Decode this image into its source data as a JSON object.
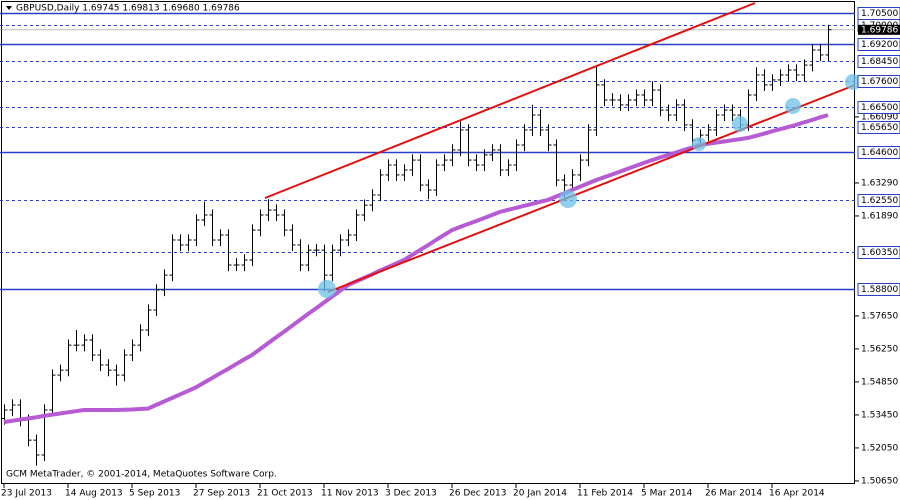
{
  "chart_data": {
    "type": "ohlc",
    "header": "GBPUSD,Daily  1.69745 1.69813 1.69680 1.69786",
    "footer": "GCM MetaTrader, © 2001-2014, MetaQuotes Software Corp.",
    "bar_color": "#000000",
    "categories": [
      "23 Jul 2013",
      null,
      null,
      null,
      null,
      null,
      null,
      null,
      "14 Aug 2013",
      null,
      null,
      null,
      null,
      null,
      null,
      null,
      "5 Sep 2013",
      null,
      null,
      null,
      null,
      null,
      null,
      null,
      "27 Sep 2013",
      null,
      null,
      null,
      null,
      null,
      null,
      null,
      "21 Oct 2013",
      null,
      null,
      null,
      null,
      null,
      null,
      null,
      "11 Nov 2013",
      null,
      null,
      null,
      null,
      null,
      null,
      null,
      "3 Dec 2013",
      null,
      null,
      null,
      null,
      null,
      null,
      null,
      "26 Dec 2013",
      null,
      null,
      null,
      null,
      null,
      null,
      null,
      "20 Jan 2014",
      null,
      null,
      null,
      null,
      null,
      null,
      null,
      "11 Feb 2014",
      null,
      null,
      null,
      null,
      null,
      null,
      null,
      "5 Mar 2014",
      null,
      null,
      null,
      null,
      null,
      null,
      null,
      "26 Mar 2014",
      null,
      null,
      null,
      null,
      null,
      null,
      null,
      "16 Apr 2014",
      null,
      null,
      null,
      null,
      null,
      null,
      null
    ],
    "open": [
      1.533,
      1.5366,
      1.5387,
      1.5323,
      1.5238,
      1.5175,
      1.5366,
      1.5514,
      1.5535,
      1.5641,
      1.5641,
      1.5663,
      1.5599,
      1.5557,
      1.5535,
      1.5514,
      1.5599,
      1.5641,
      1.5705,
      1.579,
      1.5875,
      1.5938,
      1.6087,
      1.6066,
      1.6087,
      1.6172,
      1.6193,
      1.6087,
      1.6108,
      1.5981,
      1.5981,
      1.6002,
      1.6129,
      1.6193,
      1.6214,
      1.6193,
      1.6129,
      1.6066,
      1.5981,
      1.6044,
      1.6044,
      1.5938,
      1.6044,
      1.6087,
      1.6108,
      1.6193,
      1.6235,
      1.6278,
      1.6363,
      1.6405,
      1.6363,
      1.6384,
      1.6426,
      1.632,
      1.6299,
      1.6405,
      1.6426,
      1.6469,
      1.6554,
      1.6426,
      1.6405,
      1.6448,
      1.6469,
      1.6384,
      1.6405,
      1.649,
      1.6554,
      1.6617,
      1.6554,
      1.649,
      1.6341,
      1.632,
      1.6363,
      1.6426,
      1.6554,
      1.6745,
      1.6681,
      1.6681,
      1.666,
      1.6681,
      1.6702,
      1.6681,
      1.6723,
      1.6638,
      1.6617,
      1.666,
      1.6575,
      1.6511,
      1.6532,
      1.6554,
      1.6617,
      1.6638,
      1.6617,
      1.6575,
      1.6702,
      1.6787,
      1.6745,
      1.6766,
      1.6787,
      1.6808,
      1.6787,
      1.6829,
      1.6893,
      1.6872
    ],
    "high": [
      1.539,
      1.5411,
      1.5411,
      1.5347,
      1.5262,
      1.539,
      1.5538,
      1.5559,
      1.5665,
      1.5705,
      1.5687,
      1.5687,
      1.5623,
      1.5581,
      1.5559,
      1.5623,
      1.5665,
      1.5729,
      1.5814,
      1.5899,
      1.5962,
      1.6111,
      1.6111,
      1.6111,
      1.6196,
      1.625,
      1.6217,
      1.6132,
      1.6132,
      1.601,
      1.6026,
      1.6153,
      1.6217,
      1.626,
      1.6238,
      1.6217,
      1.6153,
      1.609,
      1.6068,
      1.607,
      1.6068,
      1.6068,
      1.6111,
      1.6132,
      1.6217,
      1.6259,
      1.6302,
      1.6387,
      1.6429,
      1.6429,
      1.6408,
      1.645,
      1.645,
      1.6344,
      1.6429,
      1.645,
      1.6493,
      1.659,
      1.6578,
      1.645,
      1.6472,
      1.6493,
      1.6493,
      1.6429,
      1.6514,
      1.6578,
      1.666,
      1.6641,
      1.6578,
      1.6514,
      1.6365,
      1.6387,
      1.645,
      1.6578,
      1.683,
      1.6769,
      1.671,
      1.6705,
      1.6705,
      1.6726,
      1.6726,
      1.676,
      1.6747,
      1.6662,
      1.6684,
      1.6684,
      1.6599,
      1.6556,
      1.6578,
      1.6641,
      1.6662,
      1.6662,
      1.6641,
      1.6726,
      1.682,
      1.6811,
      1.679,
      1.6811,
      1.6832,
      1.6832,
      1.6853,
      1.6917,
      1.6917,
      1.7
    ],
    "low": [
      1.5304,
      1.534,
      1.5297,
      1.5212,
      1.513,
      1.5149,
      1.534,
      1.5488,
      1.5509,
      1.5615,
      1.5615,
      1.5573,
      1.5531,
      1.5509,
      1.547,
      1.5488,
      1.5573,
      1.5615,
      1.5679,
      1.5764,
      1.5849,
      1.5912,
      1.604,
      1.604,
      1.6061,
      1.6146,
      1.6061,
      1.6061,
      1.5955,
      1.5955,
      1.5955,
      1.5976,
      1.6103,
      1.6167,
      1.6167,
      1.6103,
      1.604,
      1.5955,
      1.5955,
      1.6018,
      1.587,
      1.5912,
      1.6018,
      1.6061,
      1.6082,
      1.6167,
      1.6209,
      1.6252,
      1.6337,
      1.6337,
      1.6337,
      1.6358,
      1.6294,
      1.626,
      1.6273,
      1.6379,
      1.64,
      1.6443,
      1.64,
      1.6379,
      1.6379,
      1.6422,
      1.6358,
      1.6358,
      1.6379,
      1.6464,
      1.6528,
      1.6528,
      1.6464,
      1.6315,
      1.626,
      1.6294,
      1.6337,
      1.64,
      1.6528,
      1.6655,
      1.6655,
      1.6634,
      1.6634,
      1.6655,
      1.6655,
      1.6655,
      1.6612,
      1.6591,
      1.6591,
      1.6549,
      1.647,
      1.6485,
      1.6506,
      1.6528,
      1.6591,
      1.6591,
      1.6549,
      1.6549,
      1.6676,
      1.6719,
      1.6719,
      1.674,
      1.6761,
      1.6761,
      1.6761,
      1.6803,
      1.6846,
      1.6846
    ],
    "close": [
      1.5366,
      1.5387,
      1.5323,
      1.5238,
      1.5175,
      1.5366,
      1.5514,
      1.5535,
      1.5641,
      1.5641,
      1.5663,
      1.5599,
      1.5557,
      1.5535,
      1.5514,
      1.5599,
      1.5641,
      1.5705,
      1.579,
      1.5875,
      1.5938,
      1.6087,
      1.6066,
      1.6087,
      1.6172,
      1.6193,
      1.6087,
      1.6108,
      1.5981,
      1.5981,
      1.6002,
      1.6129,
      1.6193,
      1.6214,
      1.6193,
      1.6129,
      1.6066,
      1.5981,
      1.6044,
      1.6044,
      1.5938,
      1.6044,
      1.6087,
      1.6108,
      1.6193,
      1.6235,
      1.6278,
      1.6363,
      1.6405,
      1.6363,
      1.6384,
      1.6426,
      1.632,
      1.6299,
      1.6405,
      1.6426,
      1.6469,
      1.6554,
      1.6426,
      1.6405,
      1.6448,
      1.6469,
      1.6384,
      1.6405,
      1.649,
      1.6554,
      1.6617,
      1.6554,
      1.649,
      1.6341,
      1.632,
      1.6363,
      1.6426,
      1.6554,
      1.6745,
      1.6681,
      1.6681,
      1.666,
      1.6681,
      1.6702,
      1.6681,
      1.6723,
      1.6638,
      1.6617,
      1.666,
      1.6575,
      1.6511,
      1.6532,
      1.6554,
      1.6617,
      1.6638,
      1.6617,
      1.6575,
      1.6702,
      1.6787,
      1.6745,
      1.6766,
      1.6787,
      1.6808,
      1.6787,
      1.6829,
      1.6893,
      1.6872,
      1.6979
    ],
    "ma": {
      "color": "#b65bd4",
      "values": [
        1.5315,
        1.532,
        1.5325,
        1.533,
        1.5335,
        1.5341,
        1.5346,
        1.5351,
        1.5356,
        1.5361,
        1.5366,
        1.5366,
        1.5366,
        1.5366,
        1.5366,
        1.5367,
        1.5368,
        1.537,
        1.5372,
        1.5387,
        1.5402,
        1.5417,
        1.5432,
        1.5447,
        1.5462,
        1.5482,
        1.5501,
        1.5521,
        1.554,
        1.556,
        1.558,
        1.5599,
        1.5624,
        1.5649,
        1.5674,
        1.5698,
        1.5723,
        1.5748,
        1.5773,
        1.5797,
        1.5822,
        1.5847,
        1.5871,
        1.5896,
        1.5911,
        1.5926,
        1.5941,
        1.5957,
        1.5972,
        1.5987,
        1.6002,
        1.6023,
        1.6044,
        1.6065,
        1.6087,
        1.6108,
        1.6129,
        1.6142,
        1.6155,
        1.6167,
        1.618,
        1.6193,
        1.6206,
        1.6215,
        1.6223,
        1.6232,
        1.624,
        1.6249,
        1.6257,
        1.6271,
        1.6285,
        1.6299,
        1.6313,
        1.6327,
        1.6341,
        1.6353,
        1.6365,
        1.6377,
        1.639,
        1.6402,
        1.6414,
        1.6426,
        1.6437,
        1.6447,
        1.6458,
        1.6469,
        1.6479,
        1.649,
        1.6495,
        1.65,
        1.6505,
        1.651,
        1.6515,
        1.652,
        1.6529,
        1.6538,
        1.6548,
        1.6557,
        1.6566,
        1.6575,
        1.6586,
        1.6596,
        1.6607,
        1.6617
      ]
    },
    "ylim": [
      1.5052,
      1.7105
    ],
    "yticks": [
      {
        "value": 1.6609,
        "label": "1.66090"
      },
      {
        "value": 1.6329,
        "label": "1.63290"
      },
      {
        "value": 1.6189,
        "label": "1.61890"
      },
      {
        "value": 1.5765,
        "label": "1.57650"
      },
      {
        "value": 1.5625,
        "label": "1.56250"
      },
      {
        "value": 1.5485,
        "label": "1.54850"
      },
      {
        "value": 1.5345,
        "label": "1.53450"
      },
      {
        "value": 1.5205,
        "label": "1.52050"
      },
      {
        "value": 1.5065,
        "label": "1.50650"
      }
    ],
    "level_color": "#2a3fc8",
    "levels": [
      {
        "value": 1.705,
        "label": "1.70500",
        "style": "solid"
      },
      {
        "value": 1.7,
        "label": "1.70000",
        "style": "dashed"
      },
      {
        "value": 1.692,
        "label": "1.69200",
        "style": "solid"
      },
      {
        "value": 1.6845,
        "label": "1.68450",
        "style": "dashed"
      },
      {
        "value": 1.676,
        "label": "1.67600",
        "style": "dashed"
      },
      {
        "value": 1.665,
        "label": "1.66500",
        "style": "dashed"
      },
      {
        "value": 1.6565,
        "label": "1.65650",
        "style": "dashed"
      },
      {
        "value": 1.646,
        "label": "1.64600",
        "style": "solid"
      },
      {
        "value": 1.6255,
        "label": "1.62550",
        "style": "dashed"
      },
      {
        "value": 1.6035,
        "label": "1.60350",
        "style": "dashed"
      },
      {
        "value": 1.588,
        "label": "1.58800",
        "style": "solid"
      }
    ],
    "current_price": {
      "value": 1.69786,
      "label": "1.69786"
    }
  }
}
